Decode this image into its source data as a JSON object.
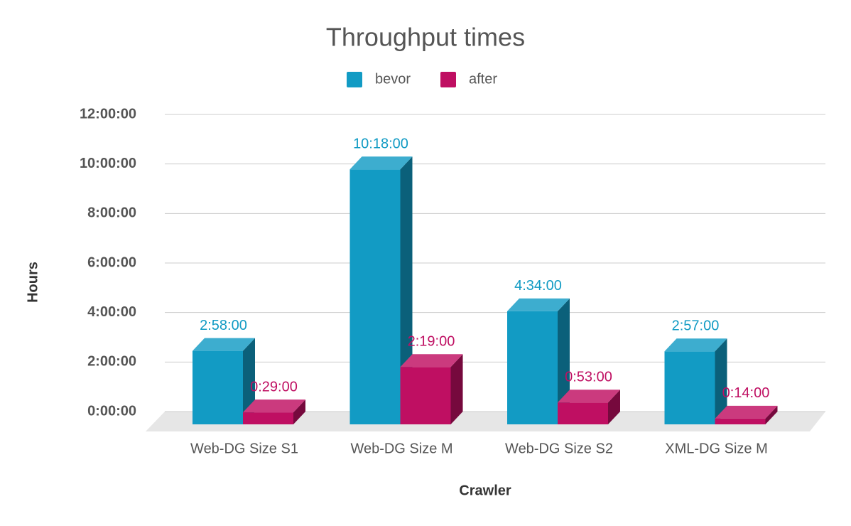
{
  "chart_data": {
    "type": "bar3d",
    "title": "Throughput times",
    "x_label": "Crawler",
    "y_label": "Hours",
    "categories": [
      "Web-DG Size S1",
      "Web-DG Size M",
      "Web-DG Size S2",
      "XML-DG Size M"
    ],
    "series": [
      {
        "name": "bevor",
        "color": "#129bc4",
        "values": [
          2.9667,
          10.3,
          4.5667,
          2.95
        ],
        "value_labels": [
          "2:58:00",
          "10:18:00",
          "4:34:00",
          "2:57:00"
        ]
      },
      {
        "name": "after",
        "color": "#bf0f62",
        "values": [
          0.4833,
          2.3167,
          0.8833,
          0.2333
        ],
        "value_labels": [
          "0:29:00",
          "2:19:00",
          "0:53:00",
          "0:14:00"
        ]
      }
    ],
    "ylim": [
      0,
      12
    ],
    "yticks": [
      {
        "value": 0,
        "label": "0:00:00"
      },
      {
        "value": 2,
        "label": "2:00:00"
      },
      {
        "value": 4,
        "label": "4:00:00"
      },
      {
        "value": 6,
        "label": "6:00:00"
      },
      {
        "value": 8,
        "label": "8:00:00"
      },
      {
        "value": 10,
        "label": "10:00:00"
      },
      {
        "value": 12,
        "label": "12:00:00"
      }
    ],
    "grid": true,
    "legend": "top"
  }
}
